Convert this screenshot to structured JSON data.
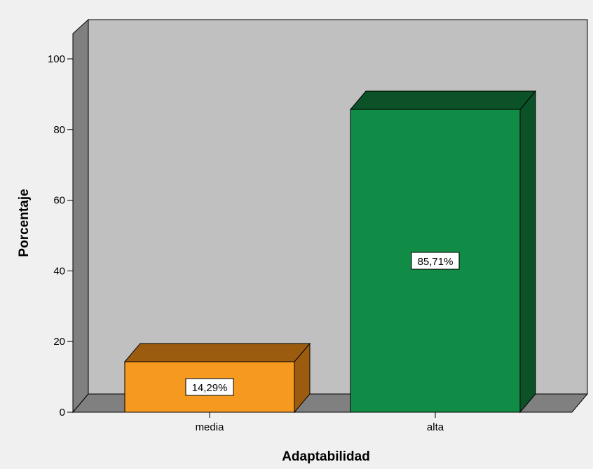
{
  "chart_data": {
    "type": "bar",
    "style": "3d",
    "xlabel": "Adaptabilidad",
    "ylabel": "Porcentaje",
    "categories": [
      "media",
      "alta"
    ],
    "values": [
      14.29,
      85.71
    ],
    "data_labels": [
      "14,29%",
      "85,71%"
    ],
    "ylim": [
      0,
      100
    ],
    "yticks": [
      0,
      20,
      40,
      60,
      80,
      100
    ],
    "grid": false,
    "legend": "none",
    "bar_colors": [
      "#f6991f",
      "#108c46"
    ],
    "bar_side_colors": [
      "#9c5c10",
      "#0b5229"
    ],
    "plot_background": "#c0c0c0",
    "wall_color": "#808080"
  }
}
